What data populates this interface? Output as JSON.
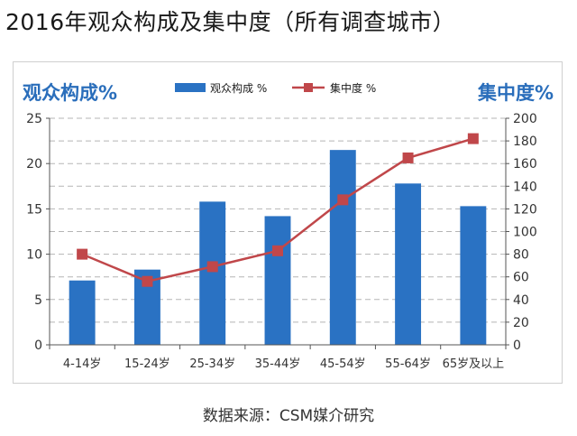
{
  "title": "2016年观众构成及集中度（所有调查城市）",
  "source": "数据来源：CSM媒介研究",
  "colors": {
    "bar": "#2a72c3",
    "line": "#c0474a",
    "marker": "#c0474a",
    "axis_title": "#2a6ebb",
    "grid": "#b5b5b5"
  },
  "chart_data": {
    "type": "bar",
    "categories": [
      "4-14岁",
      "15-24岁",
      "25-34岁",
      "35-44岁",
      "45-54岁",
      "55-64岁",
      "65岁及以上"
    ],
    "left_axis_title": "观众构成%",
    "right_axis_title": "集中度%",
    "ylim_left": [
      0,
      25
    ],
    "yticks_left": [
      "0",
      "5",
      "10",
      "15",
      "20",
      "25"
    ],
    "ylim_right": [
      0,
      200
    ],
    "yticks_right": [
      "0",
      "20",
      "40",
      "60",
      "80",
      "100",
      "120",
      "140",
      "160",
      "180",
      "200"
    ],
    "grid": true,
    "legend_position": "top-center",
    "series": [
      {
        "name": "观众构成 %",
        "type": "bar",
        "axis": "left",
        "values": [
          7.1,
          8.3,
          15.8,
          14.2,
          21.5,
          17.8,
          15.3
        ]
      },
      {
        "name": "集中度 %",
        "type": "line",
        "axis": "right",
        "values": [
          80,
          56,
          69,
          83,
          128,
          165,
          182
        ]
      }
    ]
  }
}
